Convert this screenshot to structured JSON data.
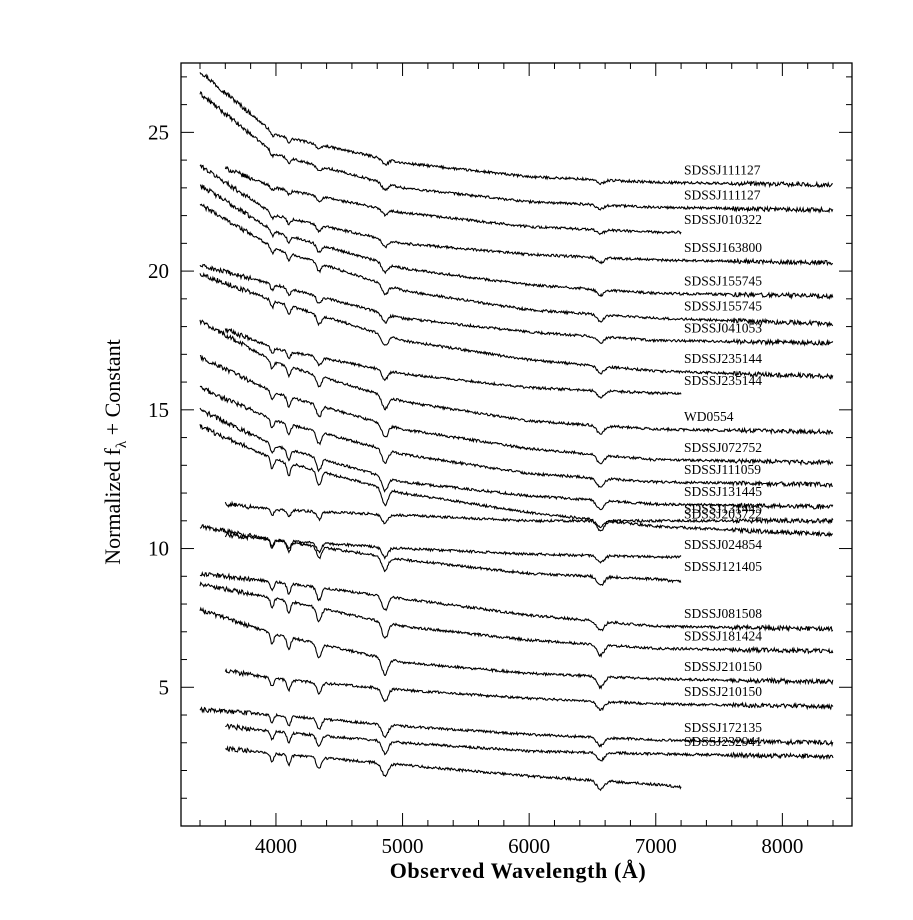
{
  "chart_data": {
    "type": "line",
    "title": "",
    "xlabel": "Observed Wavelength (Å)",
    "ylabel_parts": {
      "main": "Normalized f",
      "sub": "λ",
      "rest": " + Constant"
    },
    "xlim": [
      3250,
      8550
    ],
    "ylim": [
      0.0,
      27.5
    ],
    "x_major_ticks": [
      4000,
      5000,
      6000,
      7000,
      8000
    ],
    "x_minor_step": 200,
    "y_major_ticks": [
      5,
      10,
      15,
      20,
      25
    ],
    "y_minor_step": 1,
    "x_tick_labels": [
      "4000",
      "5000",
      "6000",
      "7000",
      "8000"
    ],
    "y_tick_labels": [
      "5",
      "10",
      "15",
      "20",
      "25"
    ],
    "line_color": "#000000",
    "grid": false,
    "legend": "none; each spectrum labelled at its right end",
    "absorption_lines": [
      3970,
      4102,
      4340,
      4861,
      6563
    ],
    "series": [
      {
        "name": "SDSSJ111127",
        "x": [
          3400,
          4000,
          5000,
          6000,
          7000,
          8400
        ],
        "values": [
          27.2,
          24.9,
          23.9,
          23.4,
          23.2,
          23.1
        ]
      },
      {
        "name": "SDSSJ111127",
        "x": [
          3400,
          4000,
          5000,
          6000,
          7000,
          8400
        ],
        "values": [
          26.4,
          24.2,
          23.0,
          22.5,
          22.3,
          22.2
        ]
      },
      {
        "name": "SDSSJ010322",
        "x": [
          3600,
          4000,
          5000,
          6000,
          7000,
          7200
        ],
        "values": [
          23.7,
          23.0,
          22.1,
          21.6,
          21.4,
          21.4
        ]
      },
      {
        "name": "SDSSJ163800",
        "x": [
          3400,
          4000,
          5000,
          6000,
          7000,
          8400
        ],
        "values": [
          23.8,
          22.0,
          21.0,
          20.6,
          20.4,
          20.3
        ]
      },
      {
        "name": "SDSSJ155745",
        "x": [
          3400,
          4000,
          5000,
          6000,
          7000,
          8400
        ],
        "values": [
          23.1,
          21.4,
          20.1,
          19.5,
          19.2,
          19.1
        ]
      },
      {
        "name": "SDSSJ155745",
        "x": [
          3400,
          4000,
          5000,
          6000,
          7000,
          8400
        ],
        "values": [
          22.4,
          20.8,
          19.3,
          18.6,
          18.3,
          18.1
        ]
      },
      {
        "name": "SDSSJ041053",
        "x": [
          3400,
          4000,
          5000,
          6000,
          7000,
          8400
        ],
        "values": [
          20.2,
          19.5,
          18.3,
          17.8,
          17.5,
          17.4
        ]
      },
      {
        "name": "SDSSJ235144",
        "x": [
          3400,
          4000,
          5000,
          6000,
          7000,
          8400
        ],
        "values": [
          19.9,
          18.9,
          17.5,
          16.8,
          16.4,
          16.2
        ]
      },
      {
        "name": "SDSSJ235144",
        "x": [
          3600,
          4000,
          5000,
          6000,
          7000,
          7200
        ],
        "values": [
          17.9,
          17.2,
          16.3,
          15.8,
          15.6,
          15.6
        ]
      },
      {
        "name": "WD0554",
        "x": [
          3400,
          4000,
          5000,
          6000,
          7000,
          8400
        ],
        "values": [
          18.2,
          16.7,
          15.3,
          14.6,
          14.3,
          14.2
        ]
      },
      {
        "name": "SDSSJ072752",
        "x": [
          3400,
          4000,
          5000,
          6000,
          7000,
          8400
        ],
        "values": [
          16.9,
          15.6,
          14.3,
          13.6,
          13.2,
          13.1
        ]
      },
      {
        "name": "SDSSJ111059",
        "x": [
          3400,
          4000,
          5000,
          6000,
          7000,
          8400
        ],
        "values": [
          15.8,
          14.6,
          13.4,
          12.7,
          12.4,
          12.3
        ]
      },
      {
        "name": "SDSSJ131445",
        "x": [
          3400,
          4000,
          5000,
          6000,
          7000,
          8400
        ],
        "values": [
          15.0,
          13.7,
          12.4,
          11.9,
          11.6,
          11.5
        ]
      },
      {
        "name": "SDSSJ131445",
        "x": [
          3600,
          4000,
          5000,
          6000,
          7000,
          8400
        ],
        "values": [
          11.6,
          11.4,
          11.2,
          11.0,
          11.0,
          11.0
        ]
      },
      {
        "name": "SDSSJ203722",
        "x": [
          3400,
          4000,
          5000,
          6000,
          7000,
          8400
        ],
        "values": [
          14.4,
          13.2,
          12.0,
          11.3,
          10.8,
          10.5
        ]
      },
      {
        "name": "SDSSJ024854",
        "x": [
          3600,
          4000,
          5000,
          6000,
          7000,
          7200
        ],
        "values": [
          10.5,
          10.3,
          10.0,
          9.8,
          9.7,
          9.7
        ]
      },
      {
        "name": "SDSSJ121405",
        "x": [
          3400,
          4000,
          5000,
          6000,
          7000,
          7200
        ],
        "values": [
          10.8,
          10.3,
          9.6,
          9.1,
          8.9,
          8.8
        ]
      },
      {
        "name": "SDSSJ081508",
        "x": [
          3400,
          4000,
          5000,
          6000,
          7000,
          8400
        ],
        "values": [
          9.1,
          8.8,
          8.2,
          7.6,
          7.2,
          7.1
        ]
      },
      {
        "name": "SDSSJ181424",
        "x": [
          3400,
          4000,
          5000,
          6000,
          7000,
          8400
        ],
        "values": [
          8.7,
          8.2,
          7.2,
          6.7,
          6.4,
          6.3
        ]
      },
      {
        "name": "SDSSJ210150",
        "x": [
          3400,
          4000,
          5000,
          6000,
          7000,
          8400
        ],
        "values": [
          7.8,
          6.9,
          5.9,
          5.5,
          5.3,
          5.2
        ]
      },
      {
        "name": "SDSSJ210150",
        "x": [
          3600,
          4000,
          5000,
          6000,
          7000,
          8400
        ],
        "values": [
          5.6,
          5.3,
          4.9,
          4.6,
          4.4,
          4.3
        ]
      },
      {
        "name": "SDSSJ172135",
        "x": [
          3400,
          4000,
          5000,
          6000,
          7000,
          8400
        ],
        "values": [
          4.2,
          4.0,
          3.6,
          3.3,
          3.1,
          3.0
        ]
      },
      {
        "name": "SDSSJ232941",
        "x": [
          3600,
          4000,
          5000,
          6000,
          7000,
          8400
        ],
        "values": [
          3.6,
          3.4,
          3.0,
          2.7,
          2.6,
          2.5
        ]
      },
      {
        "name": "",
        "x": [
          3600,
          4000,
          5000,
          6000,
          7000,
          7200
        ],
        "values": [
          2.8,
          2.6,
          2.2,
          1.8,
          1.5,
          1.4
        ]
      }
    ]
  }
}
